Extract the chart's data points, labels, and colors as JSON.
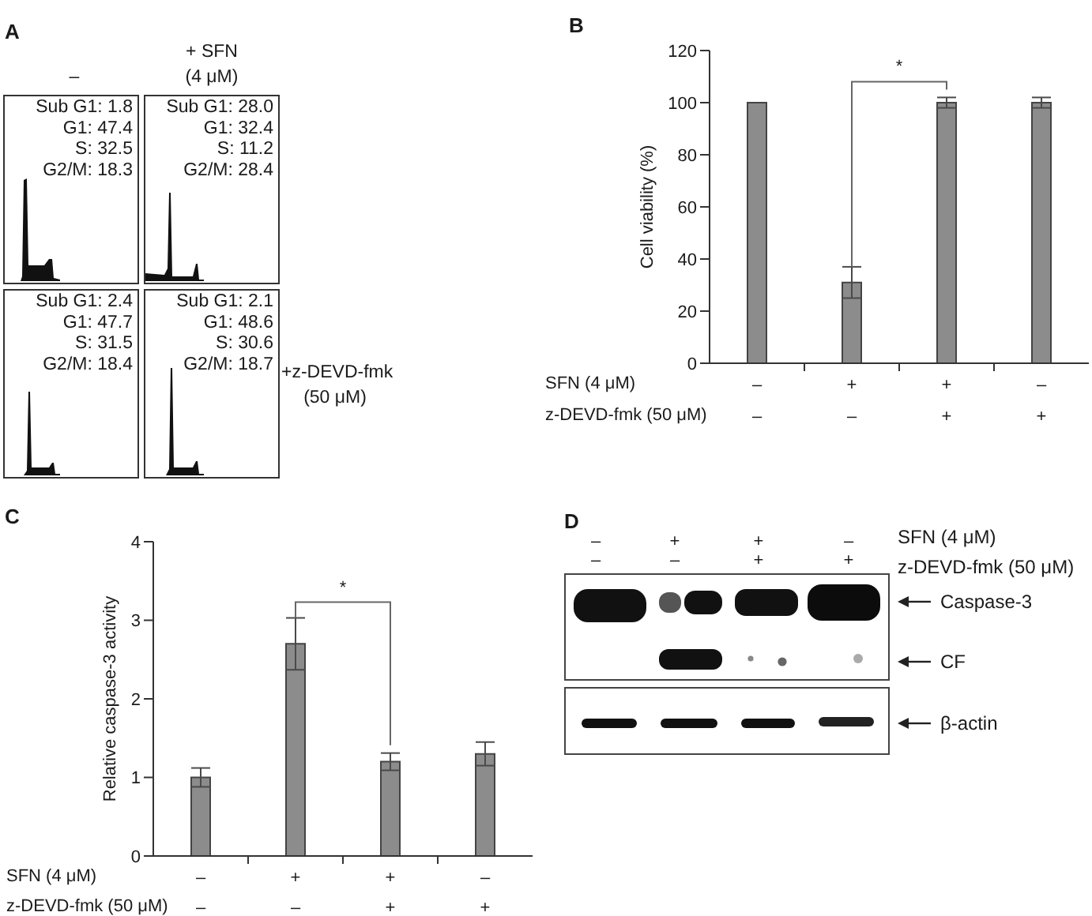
{
  "chart_data": [
    {
      "type": "other",
      "title": "A",
      "annotations": [
        "–",
        "+ SFN",
        "(4 μM)",
        "Sub G1: 1.8",
        "G1: 47.4",
        "S: 32.5",
        "G2/M: 18.3",
        "Sub G1: 28.0",
        "G1: 32.4",
        "S: 11.2",
        "G2/M: 28.4",
        "Sub G1: 2.4",
        "G1: 47.7",
        "S: 31.5",
        "G2/M: 18.4",
        "Sub G1: 2.1",
        "G1: 48.6",
        "S: 30.6",
        "G2/M: 18.7",
        "+z-DEVD-fmk",
        "(50 μM)"
      ]
    },
    {
      "type": "bar",
      "title": "B",
      "categories": [
        "–\n–",
        "+\n–",
        "+\n+",
        "–\n+"
      ],
      "values": [
        100,
        31,
        100,
        100
      ],
      "errors": [
        null,
        6,
        2,
        2
      ],
      "color": "#8c8c8c",
      "ylabel": "Cell viability (%)",
      "ylim": [
        0,
        120
      ],
      "yticks": [
        0,
        20,
        40,
        60,
        80,
        100,
        120
      ],
      "annotations": [
        "SFN (4 μM)",
        "z-DEVD-fmk (50 μM)",
        "*"
      ]
    },
    {
      "type": "bar",
      "title": "C",
      "categories": [
        "–\n–",
        "+\n–",
        "+\n+",
        "–\n+"
      ],
      "values": [
        1.0,
        2.7,
        1.2,
        1.3
      ],
      "errors": [
        0.12,
        0.33,
        0.11,
        0.15
      ],
      "color": "#8c8c8c",
      "ylabel": "Relative caspase-3 activity",
      "ylim": [
        0,
        4
      ],
      "yticks": [
        0,
        1,
        2,
        3,
        4
      ],
      "annotations": [
        "SFN (4 μM)",
        "z-DEVD-fmk (50 μM)",
        "*"
      ]
    },
    {
      "type": "other",
      "title": "D",
      "categories": [
        "–\n–",
        "+\n–",
        "+\n+",
        "–\n+"
      ],
      "annotations": [
        "SFN (4 μM)",
        "z-DEVD-fmk (50 μM)",
        "Caspase-3",
        "CF",
        "β-actin"
      ]
    }
  ]
}
